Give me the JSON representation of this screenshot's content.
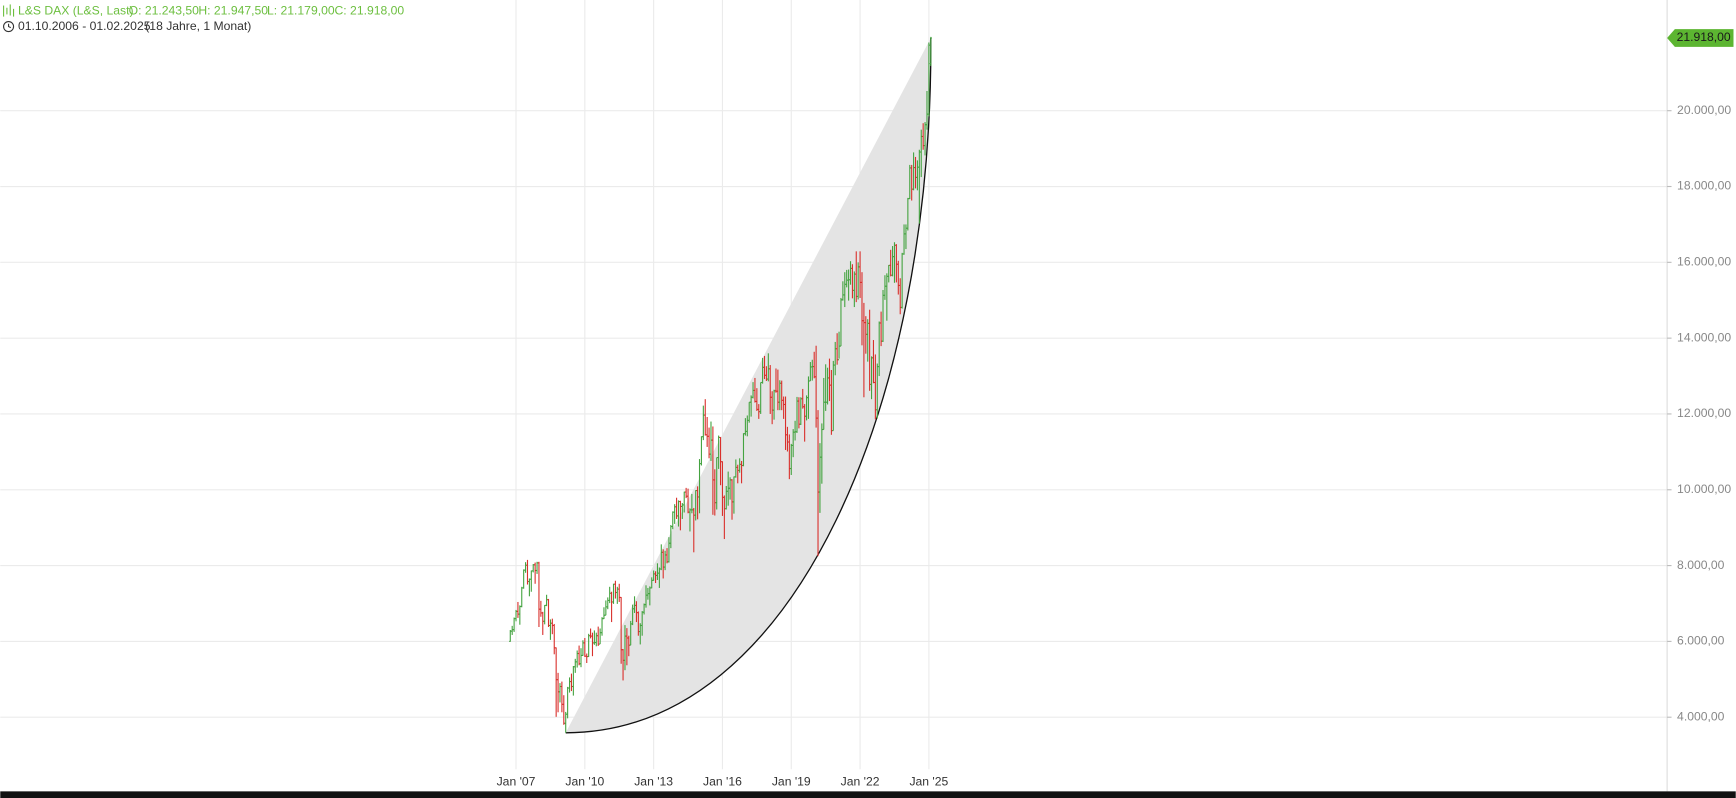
{
  "header": {
    "title": "L&S DAX (L&S, Last)",
    "ohlc": [
      "O: 21.243,50",
      "H: 21.947,50",
      "L: 21.179,00",
      "C: 21.918,00"
    ],
    "period": "01.10.2006 - 01.02.2025",
    "duration": "(18 Jahre, 1 Monat)",
    "color": "#6cbf3f"
  },
  "chart_data": {
    "type": "ohlc",
    "x": [
      "2006-10",
      "2006-11",
      "2006-12",
      "2007-01",
      "2007-02",
      "2007-03",
      "2007-04",
      "2007-05",
      "2007-06",
      "2007-07",
      "2007-08",
      "2007-09",
      "2007-10",
      "2007-11",
      "2007-12",
      "2008-01",
      "2008-02",
      "2008-03",
      "2008-04",
      "2008-05",
      "2008-06",
      "2008-07",
      "2008-08",
      "2008-09",
      "2008-10",
      "2008-11",
      "2008-12",
      "2009-01",
      "2009-02",
      "2009-03",
      "2009-04",
      "2009-05",
      "2009-06",
      "2009-07",
      "2009-08",
      "2009-09",
      "2009-10",
      "2009-11",
      "2009-12",
      "2010-01",
      "2010-02",
      "2010-03",
      "2010-04",
      "2010-05",
      "2010-06",
      "2010-07",
      "2010-08",
      "2010-09",
      "2010-10",
      "2010-11",
      "2010-12",
      "2011-01",
      "2011-02",
      "2011-03",
      "2011-04",
      "2011-05",
      "2011-06",
      "2011-07",
      "2011-08",
      "2011-09",
      "2011-10",
      "2011-11",
      "2011-12",
      "2012-01",
      "2012-02",
      "2012-03",
      "2012-04",
      "2012-05",
      "2012-06",
      "2012-07",
      "2012-08",
      "2012-09",
      "2012-10",
      "2012-11",
      "2012-12",
      "2013-01",
      "2013-02",
      "2013-03",
      "2013-04",
      "2013-05",
      "2013-06",
      "2013-07",
      "2013-08",
      "2013-09",
      "2013-10",
      "2013-11",
      "2013-12",
      "2014-01",
      "2014-02",
      "2014-03",
      "2014-04",
      "2014-05",
      "2014-06",
      "2014-07",
      "2014-08",
      "2014-09",
      "2014-10",
      "2014-11",
      "2014-12",
      "2015-01",
      "2015-02",
      "2015-03",
      "2015-04",
      "2015-05",
      "2015-06",
      "2015-07",
      "2015-08",
      "2015-09",
      "2015-10",
      "2015-11",
      "2015-12",
      "2016-01",
      "2016-02",
      "2016-03",
      "2016-04",
      "2016-05",
      "2016-06",
      "2016-07",
      "2016-08",
      "2016-09",
      "2016-10",
      "2016-11",
      "2016-12",
      "2017-01",
      "2017-02",
      "2017-03",
      "2017-04",
      "2017-05",
      "2017-06",
      "2017-07",
      "2017-08",
      "2017-09",
      "2017-10",
      "2017-11",
      "2017-12",
      "2018-01",
      "2018-02",
      "2018-03",
      "2018-04",
      "2018-05",
      "2018-06",
      "2018-07",
      "2018-08",
      "2018-09",
      "2018-10",
      "2018-11",
      "2018-12",
      "2019-01",
      "2019-02",
      "2019-03",
      "2019-04",
      "2019-05",
      "2019-06",
      "2019-07",
      "2019-08",
      "2019-09",
      "2019-10",
      "2019-11",
      "2019-12",
      "2020-01",
      "2020-02",
      "2020-03",
      "2020-04",
      "2020-05",
      "2020-06",
      "2020-07",
      "2020-08",
      "2020-09",
      "2020-10",
      "2020-11",
      "2020-12",
      "2021-01",
      "2021-02",
      "2021-03",
      "2021-04",
      "2021-05",
      "2021-06",
      "2021-07",
      "2021-08",
      "2021-09",
      "2021-10",
      "2021-11",
      "2021-12",
      "2022-01",
      "2022-02",
      "2022-03",
      "2022-04",
      "2022-05",
      "2022-06",
      "2022-07",
      "2022-08",
      "2022-09",
      "2022-10",
      "2022-11",
      "2022-12",
      "2023-01",
      "2023-02",
      "2023-03",
      "2023-04",
      "2023-05",
      "2023-06",
      "2023-07",
      "2023-08",
      "2023-09",
      "2023-10",
      "2023-11",
      "2023-12",
      "2024-01",
      "2024-02",
      "2024-03",
      "2024-04",
      "2024-05",
      "2024-06",
      "2024-07",
      "2024-08",
      "2024-09",
      "2024-10",
      "2024-11",
      "2024-12",
      "2025-01",
      "2025-02"
    ],
    "open": [
      6000,
      6270,
      6310,
      6600,
      6790,
      6720,
      6920,
      7410,
      7880,
      8010,
      7580,
      7640,
      7860,
      8020,
      7870,
      8070,
      6850,
      6750,
      6530,
      6950,
      7100,
      6420,
      6480,
      6420,
      5830,
      4990,
      4670,
      4810,
      4340,
      3840,
      4080,
      4770,
      4940,
      4810,
      5330,
      5460,
      5680,
      5410,
      5630,
      5960,
      5610,
      5600,
      6150,
      6140,
      5960,
      5970,
      6150,
      5930,
      6230,
      6600,
      6690,
      6910,
      7080,
      7270,
      7040,
      7510,
      7290,
      7380,
      7160,
      5780,
      5500,
      6140,
      6090,
      5900,
      6460,
      6860,
      6950,
      6760,
      6260,
      6420,
      6770,
      6970,
      7220,
      7260,
      7410,
      7610,
      7780,
      7740,
      7800,
      7910,
      8350,
      7960,
      8280,
      8100,
      8590,
      9030,
      9410,
      9550,
      9310,
      9690,
      9560,
      9600,
      9940,
      9830,
      9410,
      9470,
      9470,
      9330,
      9980,
      9810,
      10690,
      11400,
      11970,
      11450,
      11410,
      10940,
      11310,
      10260,
      9660,
      10850,
      11380,
      10740,
      9800,
      9500,
      9960,
      10040,
      10260,
      9680,
      10340,
      10590,
      10510,
      10670,
      10640,
      11480,
      11540,
      11830,
      12310,
      12440,
      12620,
      12330,
      12120,
      12060,
      12830,
      13230,
      13020,
      12920,
      13190,
      12440,
      12100,
      12610,
      12600,
      12310,
      12810,
      12360,
      12250,
      11450,
      11260,
      10560,
      11170,
      11520,
      11530,
      12340,
      11730,
      12400,
      12190,
      11940,
      12430,
      12870,
      13240,
      13250,
      12980,
      11890,
      9940,
      10860,
      11590,
      12310,
      12310,
      12950,
      12760,
      11560,
      13290,
      13720,
      13430,
      13790,
      15010,
      15140,
      15420,
      15530,
      15540,
      15840,
      15260,
      15690,
      15100,
      15880,
      15470,
      14460,
      14410,
      14100,
      14390,
      12780,
      13480,
      12830,
      12110,
      13250,
      14400,
      13920,
      15130,
      15370,
      15630,
      15920,
      15660,
      16150,
      16450,
      15950,
      15390,
      14810,
      16220,
      16750,
      16900,
      17680,
      18490,
      17930,
      18500,
      18240,
      18510,
      18910,
      19320,
      19080,
      19630,
      19910,
      21243.5
    ],
    "high": [
      6300,
      6410,
      6630,
      6830,
      7040,
      6950,
      7440,
      7900,
      8090,
      8150,
      7660,
      7870,
      8040,
      8080,
      8100,
      8100,
      7070,
      6780,
      6960,
      7230,
      7120,
      6580,
      6600,
      6460,
      5840,
      5170,
      4900,
      4940,
      4580,
      4140,
      4800,
      5050,
      5150,
      5350,
      5540,
      5760,
      5890,
      5820,
      6030,
      6090,
      5680,
      6200,
      6340,
      6230,
      6290,
      6230,
      6390,
      6340,
      6640,
      6900,
      7080,
      7160,
      7440,
      7310,
      7520,
      7600,
      7440,
      7520,
      7170,
      5800,
      6430,
      6350,
      6150,
      6540,
      6970,
      7190,
      7060,
      6790,
      6480,
      6800,
      7000,
      7480,
      7410,
      7450,
      7690,
      7870,
      7850,
      8060,
      7950,
      8560,
      8430,
      8390,
      8460,
      8750,
      9070,
      9430,
      9620,
      9790,
      9720,
      9710,
      9650,
      9950,
      10050,
      10030,
      9510,
      9890,
      9520,
      9990,
      10090,
      10810,
      11410,
      12220,
      12390,
      11920,
      11640,
      11800,
      11670,
      10540,
      10850,
      11430,
      11390,
      10750,
      9850,
      10100,
      10480,
      10330,
      10280,
      10350,
      10800,
      10660,
      10830,
      10760,
      11490,
      11890,
      11960,
      12310,
      12490,
      12840,
      12950,
      12680,
      12260,
      12830,
      13480,
      13530,
      13260,
      13600,
      13290,
      12600,
      12640,
      13200,
      13170,
      12890,
      12880,
      12460,
      12460,
      11660,
      11460,
      11210,
      11600,
      11820,
      12450,
      12440,
      12440,
      12660,
      12260,
      12490,
      12990,
      13370,
      13430,
      13640,
      13800,
      12100,
      11230,
      11750,
      12950,
      13310,
      13220,
      13460,
      13160,
      13400,
      13900,
      14130,
      14170,
      15060,
      15500,
      15740,
      15800,
      15810,
      16030,
      15950,
      15760,
      16290,
      16000,
      16290,
      15740,
      14930,
      14580,
      14500,
      14750,
      13520,
      13950,
      13570,
      13330,
      14440,
      14700,
      15270,
      15660,
      15710,
      15930,
      16330,
      16430,
      16530,
      16480,
      16040,
      15580,
      16250,
      17000,
      17000,
      17700,
      18570,
      18570,
      18900,
      18780,
      18690,
      18970,
      19500,
      19670,
      19700,
      20520,
      21800,
      21947.5
    ],
    "low": [
      5990,
      6170,
      6250,
      6530,
      6620,
      6440,
      6900,
      7390,
      7810,
      7500,
      7190,
      7310,
      7820,
      7520,
      7780,
      6380,
      6650,
      6170,
      6450,
      6930,
      6380,
      6040,
      6190,
      5660,
      4010,
      4130,
      4390,
      4130,
      3800,
      3589,
      3970,
      4650,
      4690,
      4570,
      5170,
      5310,
      5370,
      5320,
      5620,
      5590,
      5430,
      5590,
      6080,
      5610,
      5910,
      5870,
      5880,
      5930,
      6150,
      6590,
      6690,
      6850,
      7010,
      6510,
      6990,
      7130,
      6990,
      7040,
      5410,
      4970,
      5240,
      5370,
      5610,
      5900,
      6430,
      6750,
      6510,
      6150,
      5920,
      6150,
      6710,
      6890,
      7100,
      6950,
      7400,
      7600,
      7540,
      7620,
      7410,
      7880,
      7660,
      7880,
      8060,
      8080,
      8460,
      8960,
      9100,
      9230,
      9030,
      8930,
      9230,
      9400,
      9780,
      9380,
      8900,
      9380,
      8350,
      9190,
      9220,
      9380,
      10640,
      11310,
      11430,
      11130,
      10830,
      10760,
      9340,
      9320,
      9480,
      10550,
      10120,
      9310,
      8700,
      9480,
      9580,
      9740,
      9210,
      9370,
      10320,
      10170,
      10450,
      10170,
      10620,
      11430,
      11410,
      11770,
      11930,
      12410,
      12300,
      12080,
      11870,
      12000,
      12800,
      12920,
      12870,
      12860,
      12000,
      11730,
      11850,
      12560,
      12100,
      12100,
      12100,
      11870,
      11050,
      11010,
      10280,
      10390,
      10860,
      11300,
      11500,
      11620,
      11710,
      12140,
      11270,
      11830,
      11870,
      12870,
      12880,
      12940,
      11640,
      8250,
      9390,
      10160,
      11590,
      12080,
      12250,
      12340,
      11450,
      11560,
      13020,
      13300,
      13460,
      13790,
      14990,
      14820,
      15340,
      14990,
      15410,
      15050,
      14820,
      14950,
      15020,
      15060,
      13810,
      12440,
      13590,
      13380,
      12610,
      12390,
      12810,
      11860,
      11880,
      13000,
      13790,
      13900,
      15010,
      14460,
      15470,
      15630,
      15630,
      15460,
      15470,
      15150,
      14630,
      14780,
      16200,
      16350,
      16840,
      17670,
      17630,
      17900,
      17950,
      17900,
      17020,
      18250,
      18970,
      18820,
      19500,
      19850,
      21179
    ],
    "close": [
      6270,
      6310,
      6600,
      6790,
      6720,
      6920,
      7410,
      7880,
      8010,
      7580,
      7640,
      7860,
      8020,
      7870,
      8070,
      6850,
      6750,
      6530,
      6950,
      7100,
      6420,
      6480,
      6420,
      5830,
      4990,
      4670,
      4810,
      4340,
      3840,
      4080,
      4770,
      4940,
      4810,
      5330,
      5460,
      5680,
      5410,
      5630,
      5960,
      5610,
      5600,
      6150,
      6140,
      5960,
      5970,
      6150,
      5930,
      6230,
      6600,
      6690,
      6910,
      7080,
      7270,
      7040,
      7510,
      7290,
      7380,
      7160,
      5780,
      5500,
      6140,
      6090,
      5900,
      6460,
      6860,
      6950,
      6760,
      6260,
      6420,
      6770,
      6970,
      7220,
      7260,
      7410,
      7610,
      7780,
      7740,
      7800,
      7910,
      8350,
      7960,
      8280,
      8100,
      8590,
      9030,
      9410,
      9550,
      9310,
      9690,
      9560,
      9600,
      9940,
      9830,
      9410,
      9470,
      9470,
      9330,
      9980,
      9810,
      10690,
      11400,
      11970,
      11450,
      11410,
      10940,
      11310,
      10260,
      9660,
      10850,
      11380,
      10740,
      9800,
      9500,
      9960,
      10040,
      10260,
      9680,
      10340,
      10590,
      10510,
      10670,
      10640,
      11480,
      11540,
      11830,
      12310,
      12440,
      12620,
      12330,
      12120,
      12060,
      12830,
      13230,
      13020,
      12920,
      13190,
      12440,
      12100,
      12610,
      12600,
      12310,
      12810,
      12360,
      12250,
      11450,
      11260,
      10560,
      11170,
      11520,
      11530,
      12340,
      11730,
      12400,
      12190,
      11940,
      12430,
      12870,
      13240,
      13250,
      12980,
      11890,
      9940,
      10860,
      11590,
      12310,
      12310,
      12950,
      12760,
      11560,
      13290,
      13720,
      13430,
      13790,
      15010,
      15140,
      15420,
      15530,
      15540,
      15840,
      15260,
      15690,
      15100,
      15880,
      15470,
      14460,
      14410,
      14100,
      14390,
      12780,
      13480,
      12830,
      12110,
      13250,
      14400,
      13920,
      15130,
      15370,
      15630,
      15920,
      15660,
      16150,
      16450,
      15950,
      15390,
      14810,
      16220,
      16750,
      16900,
      17680,
      18490,
      17930,
      18500,
      18240,
      18510,
      18910,
      19320,
      19080,
      19630,
      19910,
      21730,
      21918
    ],
    "up_color": "#44a340",
    "down_color": "#d9302c",
    "ylim": [
      2400,
      22900
    ],
    "yticks": [
      {
        "value": 4000,
        "label": "4.000,00"
      },
      {
        "value": 6000,
        "label": "6.000,00"
      },
      {
        "value": 8000,
        "label": "8.000,00"
      },
      {
        "value": 10000,
        "label": "10.000,00"
      },
      {
        "value": 12000,
        "label": "12.000,00"
      },
      {
        "value": 14000,
        "label": "14.000,00"
      },
      {
        "value": 16000,
        "label": "16.000,00"
      },
      {
        "value": 18000,
        "label": "18.000,00"
      },
      {
        "value": 20000,
        "label": "20.000,00"
      }
    ],
    "xticks": [
      {
        "value": "2007-01",
        "label": "Jan '07"
      },
      {
        "value": "2010-01",
        "label": "Jan '10"
      },
      {
        "value": "2013-01",
        "label": "Jan '13"
      },
      {
        "value": "2016-01",
        "label": "Jan '16"
      },
      {
        "value": "2019-01",
        "label": "Jan '19"
      },
      {
        "value": "2022-01",
        "label": "Jan '22"
      },
      {
        "value": "2025-01",
        "label": "Jan '25"
      }
    ],
    "grid": true,
    "shape": {
      "start": {
        "x": "2009-03",
        "y": 3589
      },
      "end": {
        "x": "2025-02",
        "y": 21918
      },
      "fill": "#e4e4e4",
      "stroke": "#111111"
    },
    "last_price": {
      "value": 21918,
      "label": "21.918,00",
      "color": "#5cb531"
    }
  }
}
